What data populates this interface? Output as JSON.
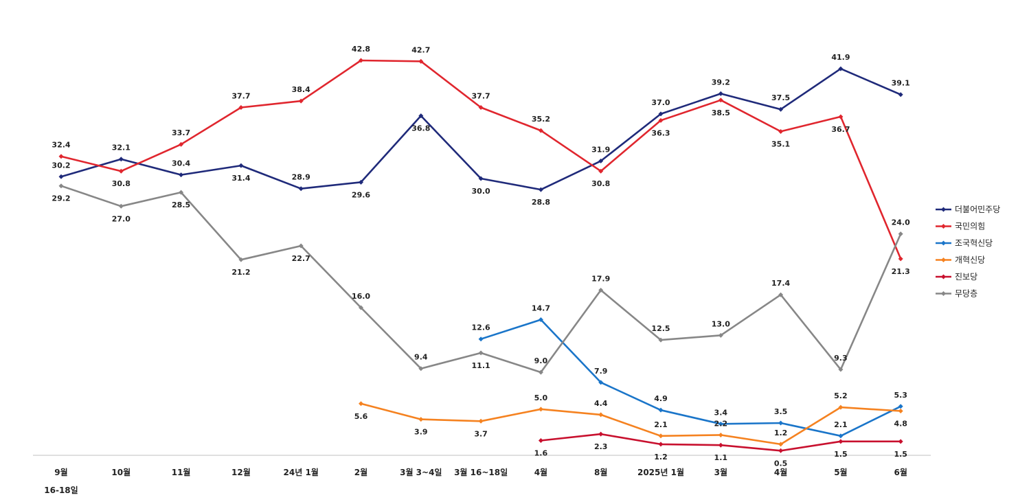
{
  "chart_data": {
    "type": "line",
    "title": "",
    "xlabel": "",
    "ylabel": "",
    "categories": [
      [
        "9월",
        "16-18일"
      ],
      [
        "10월"
      ],
      [
        "11월"
      ],
      [
        "12월"
      ],
      [
        "24년 1월"
      ],
      [
        "2월"
      ],
      [
        "3월 3~4일"
      ],
      [
        "3월 16~18일"
      ],
      [
        "4월"
      ],
      [
        "8월"
      ],
      [
        "2025년 1월"
      ],
      [
        "3월"
      ],
      [
        "4월"
      ],
      [
        "5월"
      ],
      [
        "6월"
      ]
    ],
    "ylim": [
      0,
      46
    ],
    "grid": false,
    "legend_position": "right",
    "series": [
      {
        "name": "더불어민주당",
        "color": "#1f2a7a",
        "values": [
          30.2,
          32.1,
          30.4,
          31.4,
          28.9,
          29.6,
          36.8,
          30.0,
          28.8,
          31.9,
          37.0,
          39.2,
          37.5,
          41.9,
          39.1
        ],
        "labels": [
          "30.2",
          "32.1",
          "30.4",
          "31.4",
          "28.9",
          "29.6",
          "36.8",
          "30.0",
          "28.8",
          "31.9",
          "37.0",
          "39.2",
          "37.5",
          "41.9",
          "39.1"
        ]
      },
      {
        "name": "국민의힘",
        "color": "#e0262e",
        "values": [
          32.4,
          30.8,
          33.7,
          37.7,
          38.4,
          42.8,
          42.7,
          37.7,
          35.2,
          30.8,
          36.3,
          38.5,
          35.1,
          36.7,
          21.3
        ],
        "labels": [
          "32.4",
          "30.8",
          "33.7",
          "37.7",
          "38.4",
          "42.8",
          "42.7",
          "37.7",
          "35.2",
          "30.8",
          "36.3",
          "38.5",
          "35.1",
          "36.7",
          "21.3"
        ]
      },
      {
        "name": "조국혁신당",
        "color": "#1a75c9",
        "values": [
          null,
          null,
          null,
          null,
          null,
          null,
          null,
          12.6,
          14.7,
          7.9,
          4.9,
          3.4,
          3.5,
          2.1,
          5.3
        ],
        "labels": [
          null,
          null,
          null,
          null,
          null,
          null,
          null,
          "12.6",
          "14.7",
          "7.9",
          "4.9",
          "3.4",
          "3.5",
          "2.1",
          "5.3"
        ]
      },
      {
        "name": "개혁신당",
        "color": "#f58220",
        "values": [
          null,
          null,
          null,
          null,
          null,
          5.6,
          3.9,
          3.7,
          5.0,
          4.4,
          2.1,
          2.2,
          1.2,
          5.2,
          4.8
        ],
        "labels": [
          null,
          null,
          null,
          null,
          null,
          "5.6",
          "3.9",
          "3.7",
          "5.0",
          "4.4",
          "2.1",
          "2.2",
          "1.2",
          "5.2",
          "4.8"
        ]
      },
      {
        "name": "진보당",
        "color": "#c8102e",
        "values": [
          null,
          null,
          null,
          null,
          null,
          null,
          null,
          null,
          1.6,
          2.3,
          1.2,
          1.1,
          0.5,
          1.5,
          1.5
        ],
        "labels": [
          null,
          null,
          null,
          null,
          null,
          null,
          null,
          null,
          "1.6",
          "2.3",
          "1.2",
          "1.1",
          "0.5",
          "1.5",
          "1.5"
        ]
      },
      {
        "name": "무당층",
        "color": "#878787",
        "values": [
          29.2,
          27.0,
          28.5,
          21.2,
          22.7,
          16.0,
          9.4,
          11.1,
          9.0,
          17.9,
          12.5,
          13.0,
          17.4,
          9.3,
          24.0
        ],
        "labels": [
          "29.2",
          "27.0",
          "28.5",
          "21.2",
          "22.7",
          "16.0",
          "9.4",
          "11.1",
          "9.0",
          "17.9",
          "12.5",
          "13.0",
          "17.4",
          "9.3",
          "24.0"
        ]
      }
    ]
  }
}
